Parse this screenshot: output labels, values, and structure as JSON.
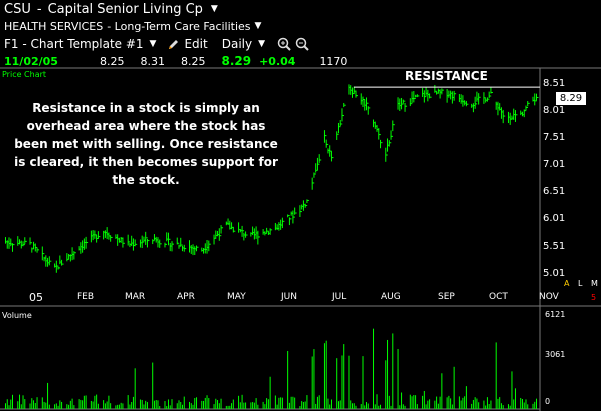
{
  "header": {
    "symbol": "CSU",
    "separator": "-",
    "company": "Capital Senior Living Cp",
    "sector": "HEALTH SERVICES",
    "industry": "- Long-Term Care Facilities"
  },
  "toolbar": {
    "template": "F1 - Chart Template #1",
    "edit_label": "Edit",
    "period_label": "Daily"
  },
  "quote": {
    "date": "11/02/05",
    "open": "8.25",
    "high": "8.31",
    "low": "8.25",
    "close": "8.29",
    "change": "+0.04",
    "volume": "1170"
  },
  "chart_label": "Price Chart",
  "volume_label": "Volume",
  "annotation": "Resistance in a stock is simply an overhead area where the stock has been met with selling.  Once resistance is cleared, it then becomes support for the stock.",
  "resistance_label": "RESISTANCE",
  "current_price_tag": "8.29",
  "year_label": "05",
  "right_flags": {
    "a": "A",
    "l": "L",
    "m": "M",
    "five": "5"
  },
  "colors": {
    "bars": "#00ff00",
    "background": "#000000",
    "text": "#ffffff",
    "flag": "#ff0000"
  },
  "chart_data": {
    "type": "line",
    "title": "",
    "x": [
      "2005-01-03",
      "2005-01-17",
      "2005-01-31",
      "2005-02-14",
      "2005-02-28",
      "2005-03-14",
      "2005-03-28",
      "2005-04-11",
      "2005-04-25",
      "2005-05-09",
      "2005-05-23",
      "2005-06-06",
      "2005-06-20",
      "2005-06-24",
      "2005-07-04",
      "2005-07-08",
      "2005-07-18",
      "2005-07-29",
      "2005-08-08",
      "2005-08-15",
      "2005-08-29",
      "2005-09-12",
      "2005-09-26",
      "2005-10-07",
      "2005-10-14",
      "2005-10-24",
      "2005-11-02"
    ],
    "series": [
      {
        "values": [
          5.6,
          5.55,
          5.1,
          5.5,
          5.8,
          5.55,
          5.65,
          5.55,
          5.45,
          5.9,
          5.7,
          5.85,
          6.2,
          6.35,
          7.5,
          7.15,
          8.45,
          8.1,
          7.2,
          8.1,
          8.3,
          8.35,
          8.15,
          8.3,
          7.9,
          7.95,
          8.29
        ]
      }
    ],
    "y_ticks": [
      "8.51",
      "8.01",
      "7.51",
      "7.01",
      "6.51",
      "6.01",
      "5.51",
      "5.01"
    ],
    "ylim": [
      4.95,
      8.6
    ],
    "x_ticks": [
      "FEB",
      "MAR",
      "APR",
      "MAY",
      "JUN",
      "JUL",
      "AUG",
      "SEP",
      "OCT",
      "NOV"
    ],
    "resistance_level": 8.45,
    "volume": {
      "y_ticks": [
        "6121",
        "3061",
        "0"
      ],
      "ylim": [
        0,
        6121
      ]
    }
  }
}
